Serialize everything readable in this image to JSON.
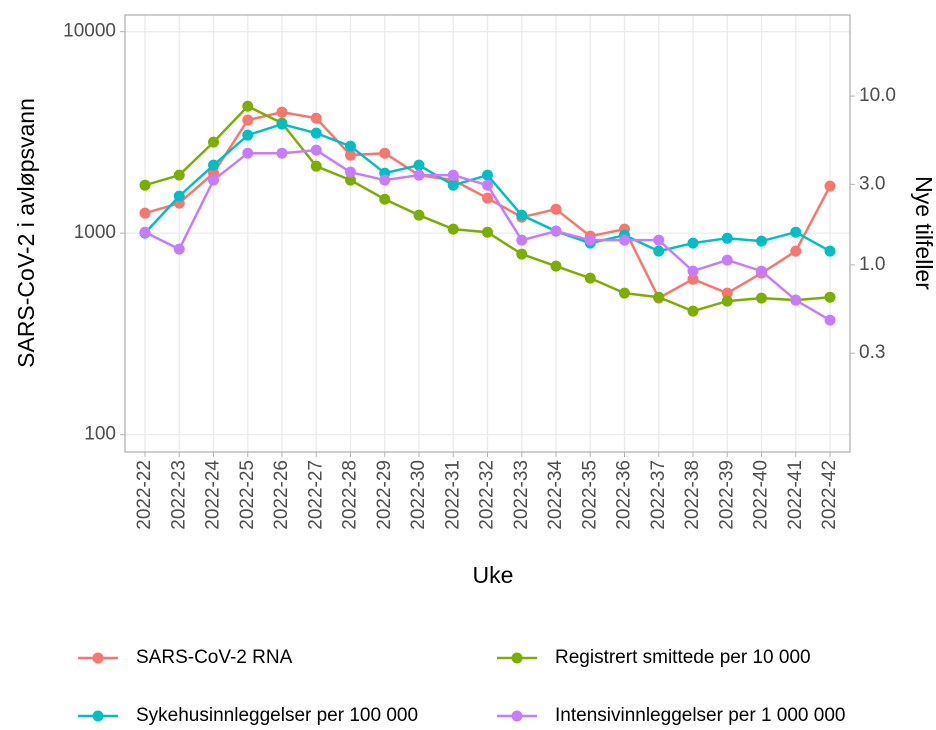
{
  "chart_data": {
    "type": "line",
    "categories": [
      "2022-22",
      "2022-23",
      "2022-24",
      "2022-25",
      "2022-26",
      "2022-27",
      "2022-28",
      "2022-29",
      "2022-30",
      "2022-31",
      "2022-32",
      "2022-33",
      "2022-34",
      "2022-35",
      "2022-36",
      "2022-37",
      "2022-38",
      "2022-39",
      "2022-40",
      "2022-41",
      "2022-42"
    ],
    "series": [
      {
        "name": "SARS-CoV-2 RNA",
        "color": "#f8766d",
        "values": [
          1257,
          1409,
          1986,
          3638,
          3985,
          3720,
          2438,
          2494,
          1940,
          1833,
          1492,
          1200,
          1315,
          966,
          1047,
          476,
          591,
          504,
          633,
          814,
          1711
        ]
      },
      {
        "name": "Registrert smittede per 10 000",
        "color": "#7cae00",
        "values": [
          1730,
          1940,
          2831,
          4266,
          3515,
          2150,
          1833,
          1474,
          1228,
          1047,
          1011,
          787,
          686,
          598,
          504,
          481,
          410,
          460,
          476,
          465,
          481
        ]
      },
      {
        "name": "Sykehusinnleggelser per 100 000",
        "color": "#00bfc4",
        "values": [
          1000,
          1527,
          2175,
          3064,
          3475,
          3135,
          2702,
          1986,
          2175,
          1730,
          1940,
          1228,
          1023,
          892,
          977,
          814,
          892,
          944,
          913,
          1011,
          814
        ]
      },
      {
        "name": "Intensivinnleggelser per 1 000 000",
        "color": "#c77cff",
        "values": [
          1011,
          833,
          1833,
          2494,
          2494,
          2582,
          2008,
          1833,
          1940,
          1940,
          1730,
          923,
          1023,
          923,
          923,
          923,
          648,
          735,
          648,
          465,
          370
        ]
      }
    ],
    "y_label": "SARS-CoV-2 i avløpsvann",
    "y2_label": "Nye tilfeller",
    "x_label": "Uke",
    "ylim": [
      82,
      12100
    ],
    "yticks": [
      100,
      1000,
      10000
    ],
    "y2lim": [
      0.078,
      30.2
    ],
    "y2ticks": [
      {
        "value": 10,
        "label": "10.0"
      },
      {
        "value": 3,
        "label": "3.0"
      },
      {
        "value": 1,
        "label": "1.0"
      },
      0.3
    ],
    "log_scale": true,
    "grid": true,
    "legend": "bottom"
  }
}
